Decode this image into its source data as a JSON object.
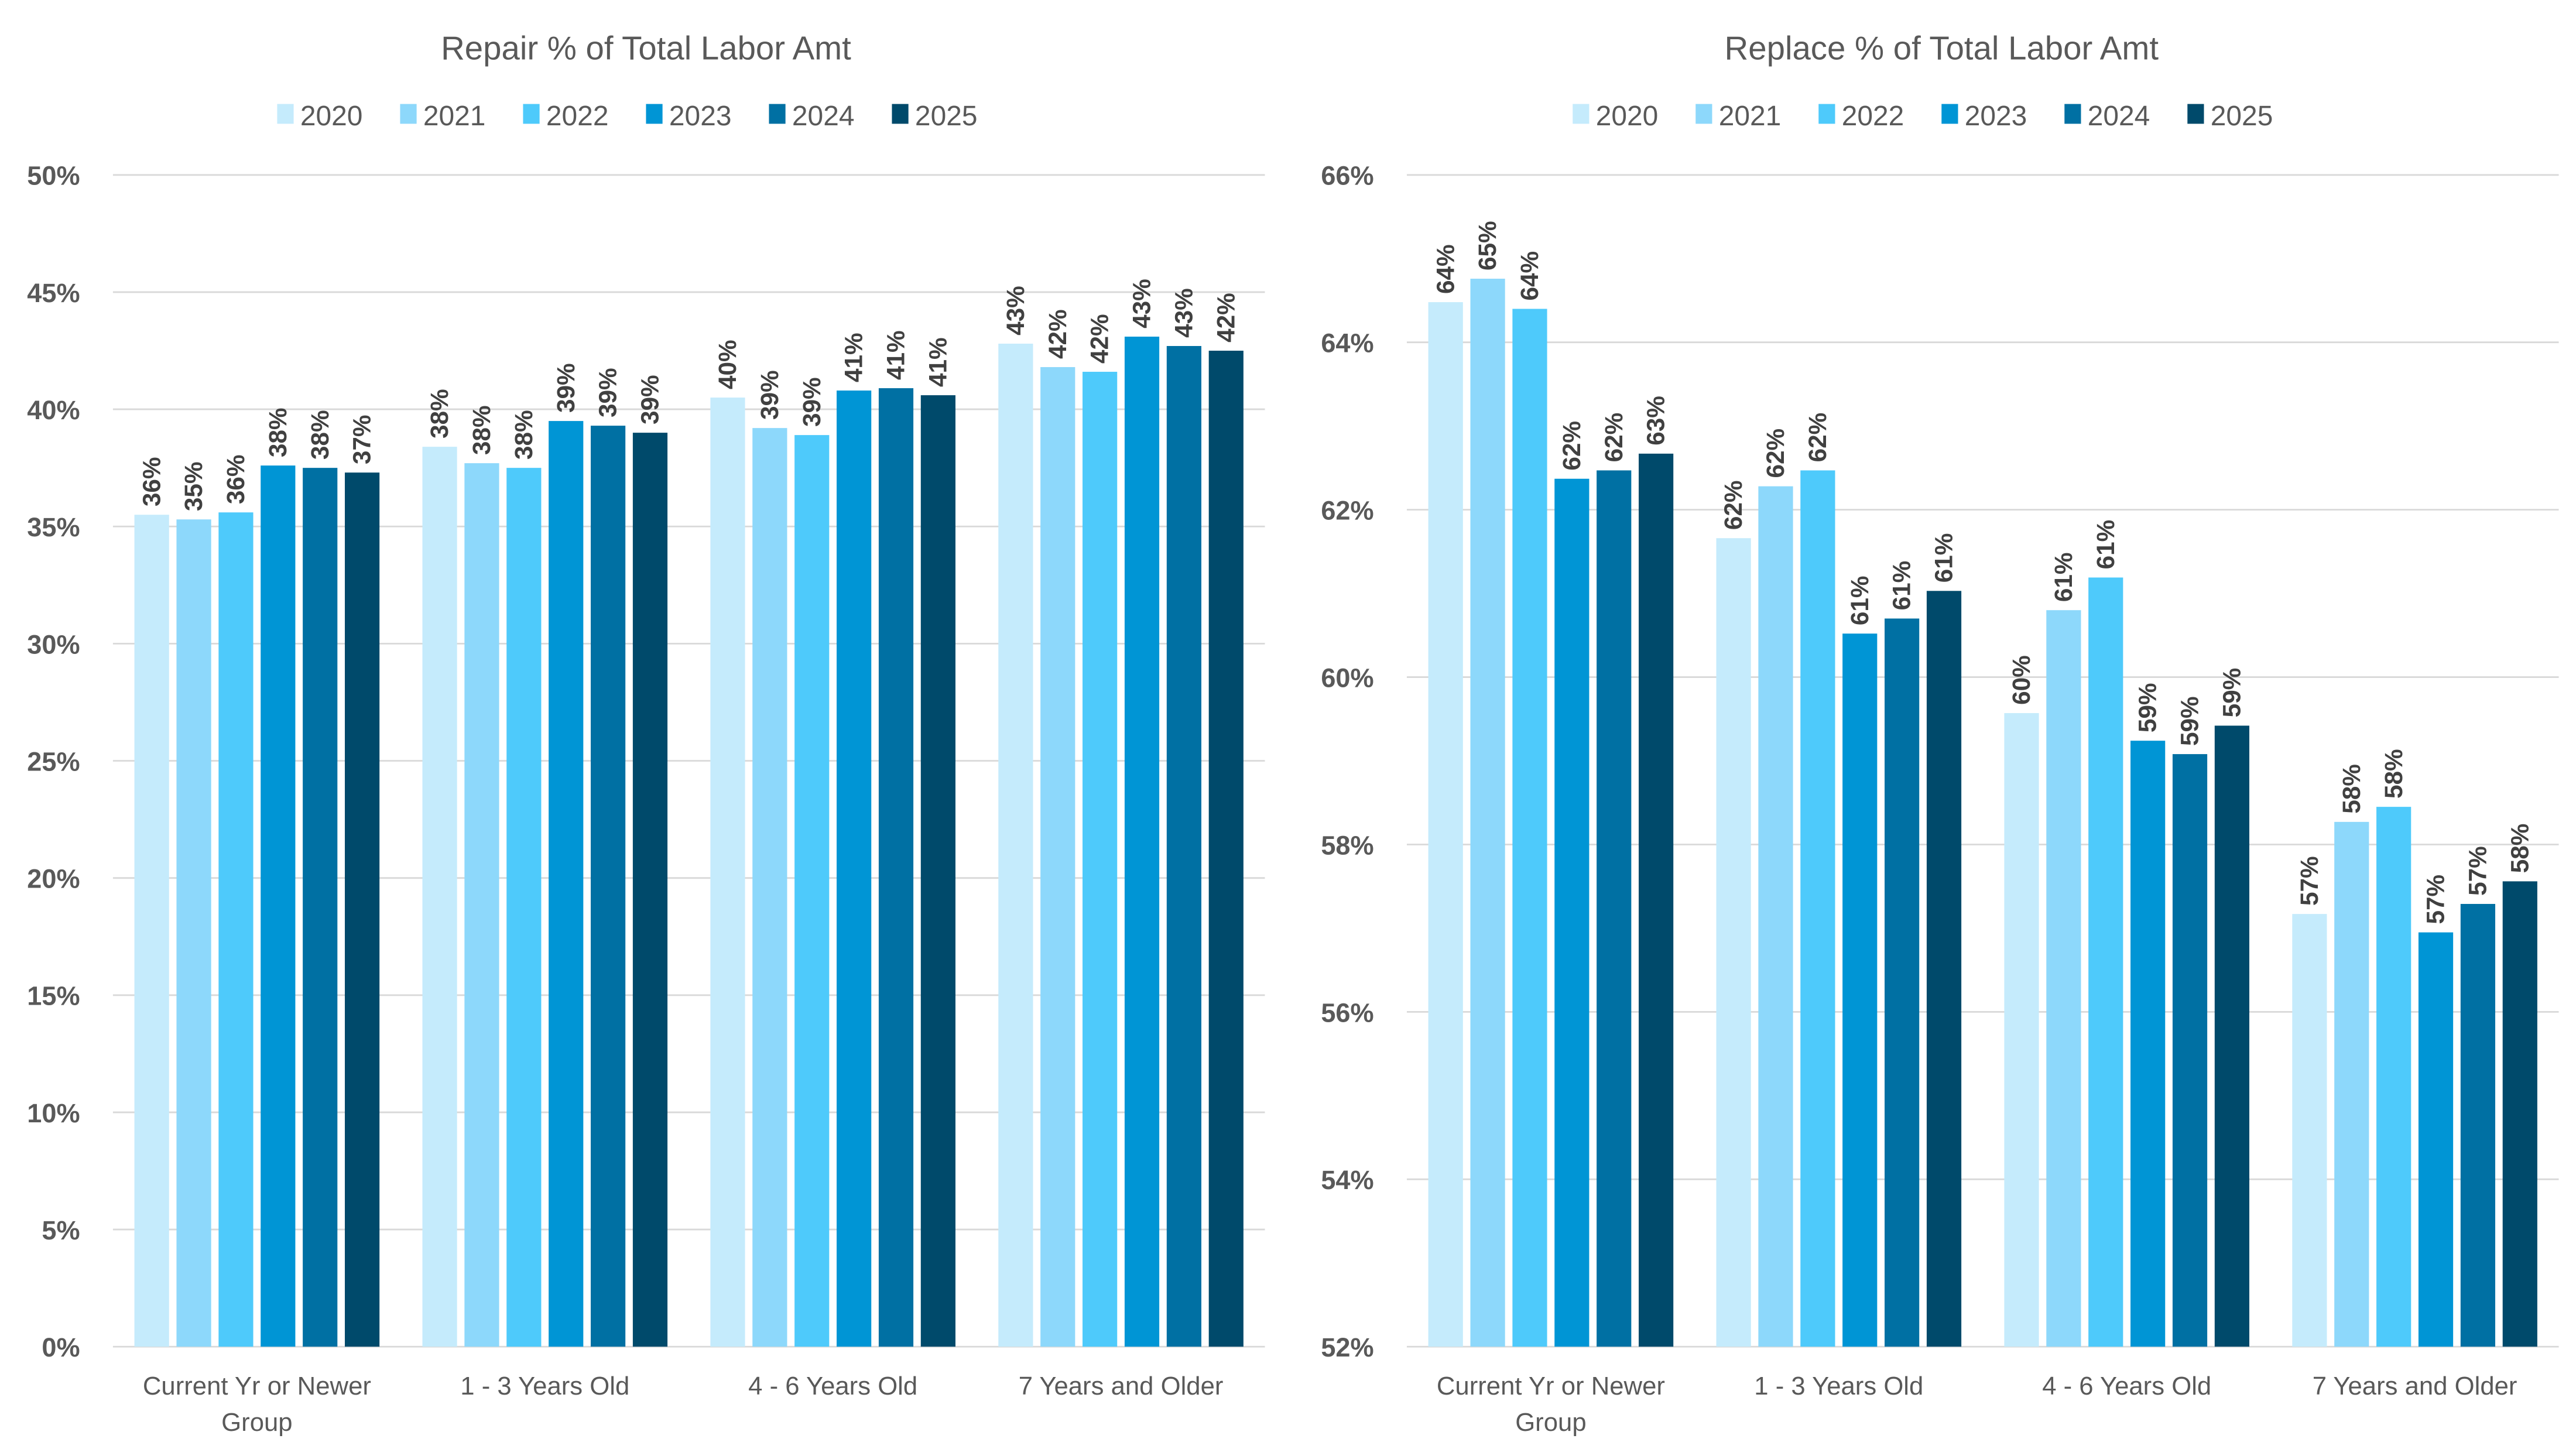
{
  "colors": [
    "#C5EBFC",
    "#8DD8FB",
    "#4ECAFB",
    "#0095D5",
    "#0070A3",
    "#004A6B"
  ],
  "chart_data": [
    {
      "type": "bar",
      "title": "Repair % of Total Labor Amt",
      "xlabel": "",
      "ylabel": "",
      "ylim": [
        0,
        50
      ],
      "yticks": [
        "0%",
        "5%",
        "10%",
        "15%",
        "20%",
        "25%",
        "30%",
        "35%",
        "40%",
        "45%",
        "50%"
      ],
      "ytick_values": [
        0,
        5,
        10,
        15,
        20,
        25,
        30,
        35,
        40,
        45,
        50
      ],
      "grid": true,
      "legend": "top",
      "categories": [
        "Current Yr or Newer Group",
        "1 - 3 Years Old",
        "4 - 6 Years Old",
        "7 Years and Older"
      ],
      "series": [
        {
          "name": "2020",
          "values": [
            35.5,
            38.4,
            40.5,
            42.8
          ],
          "labels": [
            "36%",
            "38%",
            "40%",
            "43%"
          ]
        },
        {
          "name": "2021",
          "values": [
            35.3,
            37.7,
            39.2,
            41.8
          ],
          "labels": [
            "35%",
            "38%",
            "39%",
            "42%"
          ]
        },
        {
          "name": "2022",
          "values": [
            35.6,
            37.5,
            38.9,
            41.6
          ],
          "labels": [
            "36%",
            "38%",
            "39%",
            "42%"
          ]
        },
        {
          "name": "2023",
          "values": [
            37.6,
            39.5,
            40.8,
            43.1
          ],
          "labels": [
            "38%",
            "39%",
            "41%",
            "43%"
          ]
        },
        {
          "name": "2024",
          "values": [
            37.5,
            39.3,
            40.9,
            42.7
          ],
          "labels": [
            "38%",
            "39%",
            "41%",
            "43%"
          ]
        },
        {
          "name": "2025",
          "values": [
            37.3,
            39.0,
            40.6,
            42.5
          ],
          "labels": [
            "37%",
            "39%",
            "41%",
            "42%"
          ]
        }
      ]
    },
    {
      "type": "bar",
      "title": "Replace % of Total Labor Amt",
      "xlabel": "",
      "ylabel": "",
      "ylim": [
        52,
        66
      ],
      "yticks": [
        "52%",
        "54%",
        "56%",
        "58%",
        "60%",
        "62%",
        "64%",
        "66%"
      ],
      "ytick_values": [
        52,
        54,
        56,
        58,
        60,
        62,
        64,
        66
      ],
      "grid": true,
      "legend": "top",
      "categories": [
        "Current Yr or Newer Group",
        "1 - 3 Years Old",
        "4 - 6 Years Old",
        "7 Years and Older"
      ],
      "series": [
        {
          "name": "2020",
          "values": [
            64.48,
            61.66,
            59.57,
            57.17
          ],
          "labels": [
            "64%",
            "62%",
            "60%",
            "57%"
          ]
        },
        {
          "name": "2021",
          "values": [
            64.76,
            62.28,
            60.8,
            58.27
          ],
          "labels": [
            "65%",
            "62%",
            "61%",
            "58%"
          ]
        },
        {
          "name": "2022",
          "values": [
            64.4,
            62.47,
            61.19,
            58.45
          ],
          "labels": [
            "64%",
            "62%",
            "61%",
            "58%"
          ]
        },
        {
          "name": "2023",
          "values": [
            62.37,
            60.52,
            59.24,
            56.95
          ],
          "labels": [
            "62%",
            "61%",
            "59%",
            "57%"
          ]
        },
        {
          "name": "2024",
          "values": [
            62.47,
            60.7,
            59.08,
            57.29
          ],
          "labels": [
            "62%",
            "61%",
            "59%",
            "57%"
          ]
        },
        {
          "name": "2025",
          "values": [
            62.67,
            61.03,
            59.42,
            57.56
          ],
          "labels": [
            "63%",
            "61%",
            "59%",
            "58%"
          ]
        }
      ]
    }
  ]
}
